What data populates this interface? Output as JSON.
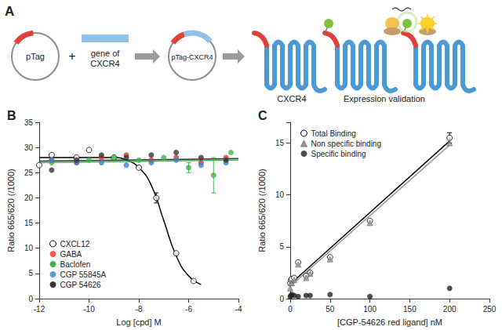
{
  "diagram": {
    "label": "A",
    "plasmid": "pTag",
    "plus": "+",
    "gene": "gene of CXCR4",
    "construct": "pTag-CXCR4",
    "receptor": "CXCR4",
    "step": "Expression validation"
  },
  "chart_data": [
    {
      "type": "scatter",
      "title": "B",
      "x_label": "Log [cpd] M",
      "y_label": "Ratio 665/620 (/1000)",
      "xlim": [
        -12,
        -4
      ],
      "xticks": [
        -12,
        -10,
        -8,
        -6,
        -4
      ],
      "ylim": [
        0,
        35
      ],
      "yticks": [
        0,
        5,
        10,
        15,
        20,
        25,
        30,
        35
      ],
      "grid": false,
      "legend": "lower left",
      "series": [
        {
          "name": "CXCL12",
          "color": "#000000",
          "marker": "circle_open",
          "x": [
            -12,
            -11.5,
            -10.5,
            -10,
            -9,
            -8,
            -7.3,
            -6.5,
            -5.8
          ],
          "values": [
            26.5,
            28.5,
            28,
            29.5,
            28,
            26,
            20,
            9,
            3.5
          ],
          "errors": [
            null,
            null,
            null,
            null,
            null,
            null,
            1,
            null,
            null
          ],
          "fit_x": [
            -12,
            -9,
            -8.5,
            -8,
            -7.5,
            -7,
            -6.5,
            -6,
            -5.5
          ],
          "fit_values": [
            28,
            28,
            27.5,
            26,
            22.5,
            15.5,
            8.5,
            4.5,
            2.8
          ]
        },
        {
          "name": "GABA",
          "color": "#e8302a",
          "marker": "circle",
          "x": [
            -11.5,
            -10.5,
            -9.5,
            -8.5,
            -7.5,
            -6.5,
            -5.5,
            -4.5
          ],
          "values": [
            27.5,
            27,
            28,
            28.5,
            27.5,
            28,
            27,
            28
          ]
        },
        {
          "name": "Baclofen",
          "color": "#3cb44b",
          "marker": "circle",
          "x": [
            -11.5,
            -10,
            -9,
            -8,
            -7,
            -6,
            -5,
            -4.3
          ],
          "values": [
            27,
            27.5,
            28,
            27.5,
            28,
            26,
            24.5,
            29
          ],
          "errors": [
            null,
            null,
            null,
            null,
            null,
            1,
            3.5,
            null
          ],
          "fit_x": [
            -12,
            -4
          ],
          "fit_values": [
            27,
            27.5
          ]
        },
        {
          "name": "CGP 55845A",
          "color": "#3a7fd5",
          "marker": "circle",
          "x": [
            -11.5,
            -10.5,
            -9.5,
            -8.5,
            -7.5,
            -6.5,
            -5.5,
            -4.5
          ],
          "values": [
            27.5,
            27,
            27,
            26.5,
            27,
            27.5,
            26.5,
            27
          ]
        },
        {
          "name": "CGP 54626",
          "color": "#333333",
          "marker": "circle",
          "x": [
            -11.5,
            -10.5,
            -9.5,
            -8.5,
            -7.5,
            -6.5,
            -5.5,
            -4.5
          ],
          "values": [
            25.5,
            27.5,
            28.5,
            28,
            28.5,
            29,
            28,
            27.5
          ],
          "fit_x": [
            -12,
            -4
          ],
          "fit_values": [
            27.3,
            27.8
          ]
        }
      ]
    },
    {
      "type": "scatter",
      "title": "C",
      "x_label": "[CGP-54626 red ligand] nM",
      "y_label": "Ratio 665/620 (/1000)",
      "xlim": [
        0,
        250
      ],
      "xticks": [
        0,
        50,
        100,
        150,
        200,
        250
      ],
      "ylim": [
        0,
        17
      ],
      "yticks": [
        0,
        5,
        10,
        15
      ],
      "grid": false,
      "legend": "upper left",
      "series": [
        {
          "name": "Total Binding",
          "color": "#000000",
          "marker": "circle_open",
          "x": [
            0,
            1,
            2,
            5,
            10,
            20,
            25,
            50,
            100,
            200
          ],
          "values": [
            1.5,
            1.8,
            1.9,
            2,
            3.5,
            2.2,
            2.5,
            4,
            7.5,
            15.5
          ],
          "errors": [
            null,
            null,
            null,
            null,
            null,
            null,
            null,
            null,
            null,
            0.5
          ],
          "fit_x": [
            0,
            200
          ],
          "fit_values": [
            1.4,
            15.2
          ]
        },
        {
          "name": "Non specific binding",
          "color": "#999999",
          "marker": "triangle",
          "x": [
            0,
            1,
            2,
            5,
            10,
            20,
            25,
            50,
            100,
            200
          ],
          "values": [
            1,
            1.5,
            1.5,
            1.8,
            3.3,
            2,
            2.4,
            3.8,
            7.3,
            15
          ],
          "fit_x": [
            0,
            200
          ],
          "fit_values": [
            1.2,
            14.8
          ]
        },
        {
          "name": "Specific binding",
          "color": "#222222",
          "marker": "circle",
          "x": [
            0,
            1,
            2,
            5,
            10,
            20,
            25,
            50,
            100,
            200
          ],
          "values": [
            0.2,
            0.3,
            0.4,
            0.3,
            0.2,
            0.3,
            0.3,
            0.4,
            0.2,
            1
          ]
        }
      ]
    }
  ]
}
